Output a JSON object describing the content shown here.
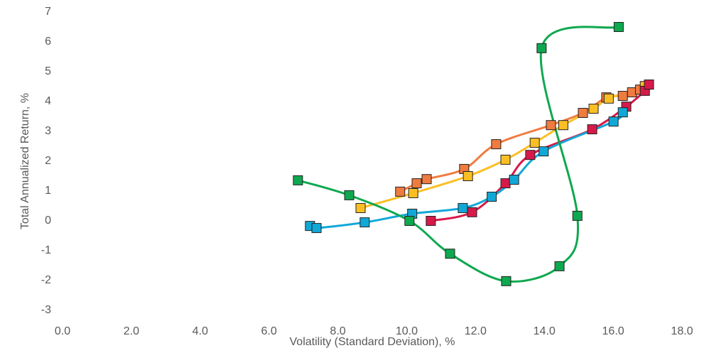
{
  "chart_data": {
    "type": "scatter-smooth",
    "x_label": "Volatility (Standard Deviation), %",
    "y_label": "Total Annualized Return, %",
    "xlim": [
      0,
      18
    ],
    "xticks": [
      {
        "value": 0,
        "label": "0.0"
      },
      {
        "value": 2,
        "label": "2.0"
      },
      {
        "value": 4,
        "label": "4.0"
      },
      {
        "value": 6,
        "label": "6.0"
      },
      {
        "value": 8,
        "label": "8.0"
      },
      {
        "value": 10,
        "label": "10.0"
      },
      {
        "value": 12,
        "label": "12.0"
      },
      {
        "value": 14,
        "label": "14.0"
      },
      {
        "value": 16,
        "label": "16.0"
      },
      {
        "value": 18,
        "label": "18.0"
      }
    ],
    "ylim": [
      -3,
      7
    ],
    "yticks": [
      -3,
      -2,
      -1,
      0,
      1,
      2,
      3,
      4,
      5,
      6,
      7
    ],
    "grid": false,
    "series": [
      {
        "color": "#f07b3f",
        "x": [
          9.81,
          10.29,
          10.58,
          11.67,
          12.6,
          14.19,
          15.12,
          15.8,
          16.28,
          16.55,
          16.78,
          17.04
        ],
        "values": [
          0.98,
          1.26,
          1.4,
          1.74,
          2.57,
          3.21,
          3.62,
          4.14,
          4.19,
          4.31,
          4.4,
          4.57
        ]
      },
      {
        "color": "#fbbf24",
        "x": [
          8.66,
          10.19,
          11.78,
          12.87,
          13.72,
          14.55,
          15.43,
          15.87,
          16.92
        ],
        "values": [
          0.43,
          0.93,
          1.5,
          2.05,
          2.62,
          3.21,
          3.76,
          4.1,
          4.52
        ]
      },
      {
        "color": "#d7194a",
        "x": [
          10.7,
          11.9,
          12.87,
          13.59,
          15.39,
          16.38,
          16.92,
          17.04
        ],
        "values": [
          0.0,
          0.29,
          1.26,
          2.21,
          3.07,
          3.83,
          4.36,
          4.57
        ]
      },
      {
        "color": "#11a8d8",
        "x": [
          7.19,
          7.38,
          8.78,
          10.16,
          11.63,
          12.47,
          13.12,
          13.98,
          16.01,
          16.28
        ],
        "values": [
          -0.17,
          -0.24,
          -0.05,
          0.24,
          0.43,
          0.81,
          1.38,
          2.33,
          3.33,
          3.64
        ]
      },
      {
        "color": "#0ea84f",
        "x": [
          6.84,
          8.33,
          10.08,
          11.26,
          12.89,
          14.44,
          14.96,
          13.92,
          16.16
        ],
        "values": [
          1.36,
          0.86,
          0.0,
          -1.1,
          -2.02,
          -1.52,
          0.17,
          5.79,
          6.5
        ]
      }
    ]
  }
}
